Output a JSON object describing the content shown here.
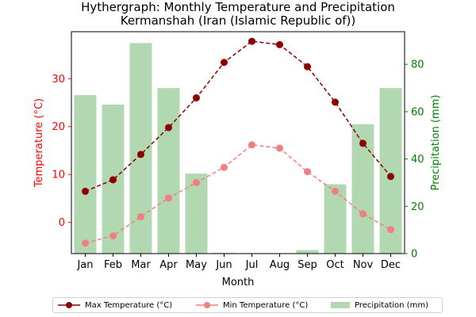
{
  "chart_data": {
    "type": "bar",
    "title": "Hythergraph: Monthly Temperature and Precipitation",
    "subtitle": "Kermanshah (Iran (Islamic Republic of))",
    "xlabel": "Month",
    "ylabel_left": "Temperature (°C)",
    "ylabel_right": "Precipitation (mm)",
    "categories": [
      "Jan",
      "Feb",
      "Mar",
      "Apr",
      "May",
      "Jun",
      "Jul",
      "Aug",
      "Sep",
      "Oct",
      "Nov",
      "Dec"
    ],
    "y_left_ticks": [
      0,
      10,
      20,
      30
    ],
    "y_right_ticks": [
      0,
      20,
      40,
      60,
      80
    ],
    "ylim_left": [
      -6.5,
      39.8
    ],
    "ylim_right": [
      0,
      93.8
    ],
    "series": [
      {
        "name": "Max Temperature (°C)",
        "axis": "left",
        "kind": "line",
        "style": "dashed",
        "color": "#8b0000",
        "values": [
          6.5,
          8.9,
          14.2,
          19.8,
          26.0,
          33.4,
          37.8,
          37.1,
          32.5,
          25.1,
          16.5,
          9.6
        ]
      },
      {
        "name": "Min Temperature (°C)",
        "axis": "left",
        "kind": "line",
        "style": "dashed",
        "color": "#f08080",
        "values": [
          -4.3,
          -2.8,
          1.2,
          5.1,
          8.3,
          11.5,
          16.2,
          15.5,
          10.6,
          6.5,
          1.8,
          -1.5
        ]
      },
      {
        "name": "Precipitation (mm)",
        "axis": "right",
        "kind": "bar",
        "color": "#b2d8b2",
        "values": [
          67.0,
          63.0,
          89.0,
          70.0,
          33.8,
          0.3,
          0.2,
          0.2,
          1.5,
          29.3,
          54.7,
          70.0
        ]
      }
    ],
    "grid": false,
    "legend_position": "bottom",
    "left_axis_color": "#ff0000",
    "right_axis_color": "#008000"
  }
}
